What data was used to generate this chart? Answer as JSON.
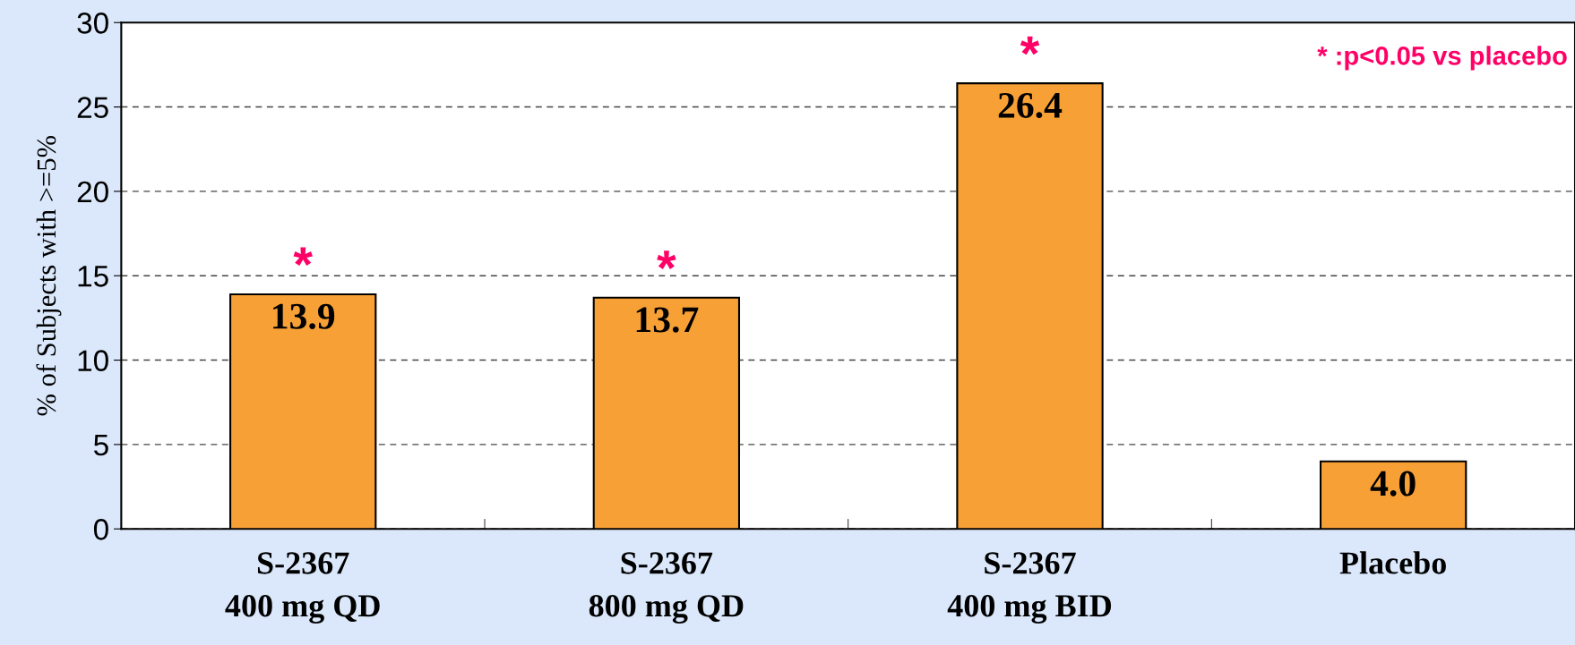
{
  "chart_data": {
    "type": "bar",
    "categories": [
      "S-2367\n400 mg QD",
      "S-2367\n800 mg QD",
      "S-2367\n400 mg BID",
      "Placebo"
    ],
    "values": [
      13.9,
      13.7,
      26.4,
      4.0
    ],
    "color": "#f7a035",
    "value_labels": [
      "13.9",
      "13.7",
      "26.4",
      "4.0"
    ],
    "ylabel": "% of Subjects with >=5%",
    "ylim": [
      0,
      30
    ],
    "yticks": [
      0,
      5,
      10,
      15,
      20,
      25,
      30
    ],
    "grid": "y",
    "annotations": [
      {
        "text": "*",
        "x": "S-2367\n400 mg QD",
        "y": 13.9
      },
      {
        "text": "*",
        "x": "S-2367\n800 mg QD",
        "y": 13.7
      },
      {
        "text": "*",
        "x": "S-2367\n400 mg BID",
        "y": 26.4
      },
      "* :p<0.05 vs placebo"
    ]
  }
}
